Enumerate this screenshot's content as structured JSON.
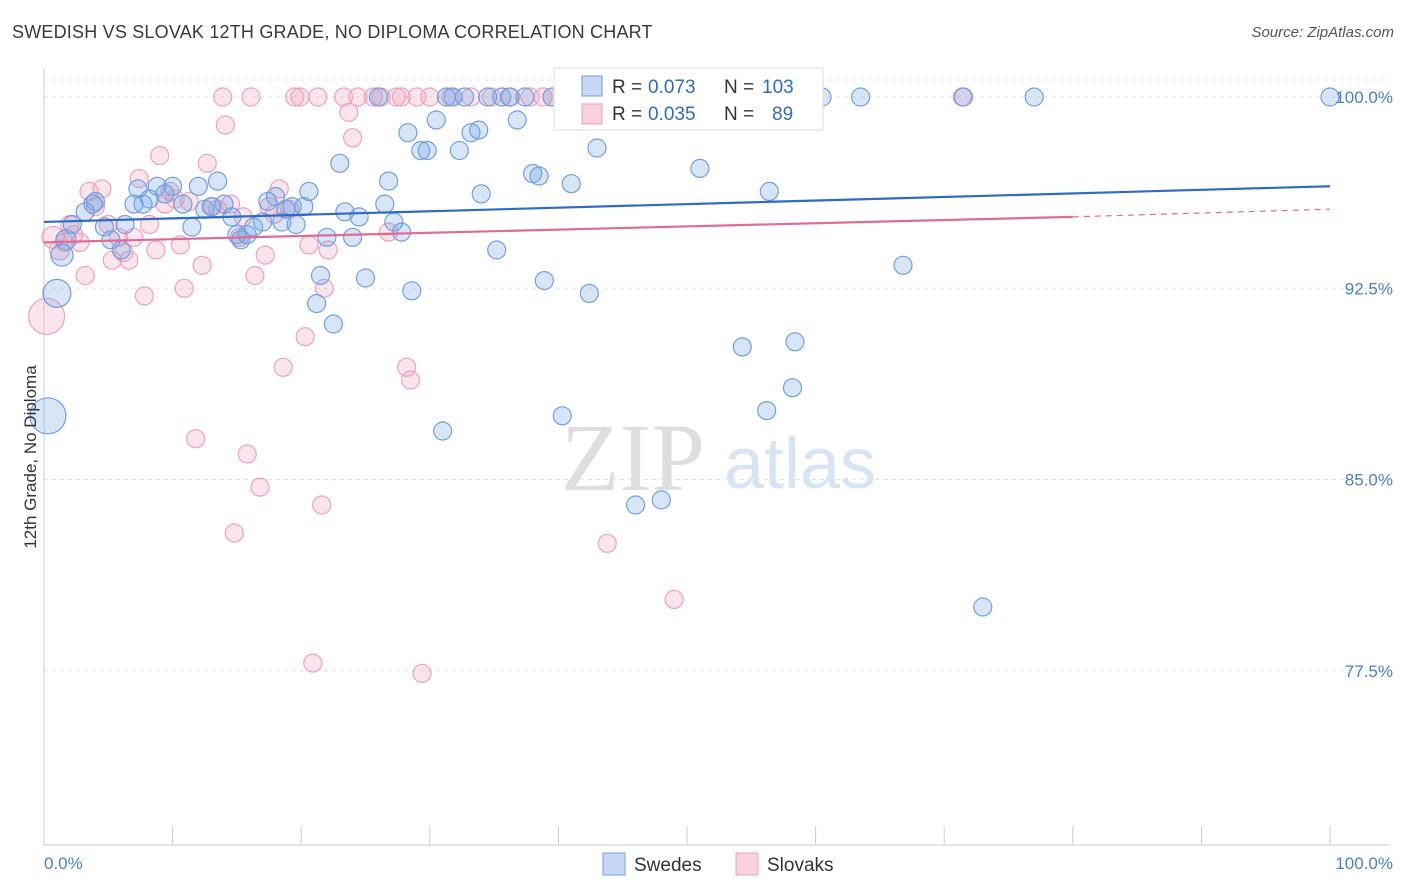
{
  "title": "SWEDISH VS SLOVAK 12TH GRADE, NO DIPLOMA CORRELATION CHART",
  "source": "Source: ZipAtlas.com",
  "watermark": {
    "zip": "ZIP",
    "atlas": "atlas"
  },
  "colors": {
    "swedes": "#6fa0e4",
    "slovaks": "#f0a0bc",
    "swedes_line": "#2f6bc4",
    "slovaks_line": "#e06b95"
  },
  "legend": {
    "swedes": {
      "r_label": "R =",
      "r_value": "0.073",
      "n_label": "N =",
      "n_value": "103"
    },
    "slovaks": {
      "r_label": "R =",
      "r_value": "0.035",
      "n_label": "N =",
      "n_value": "89"
    }
  },
  "bottom_legend": {
    "swedes": "Swedes",
    "slovaks": "Slovaks"
  },
  "chart_data": {
    "type": "scatter",
    "title": "SWEDISH VS SLOVAK 12TH GRADE, NO DIPLOMA CORRELATION CHART",
    "xlabel": "",
    "ylabel": "12th Grade, No Diploma",
    "xlim": [
      0,
      100
    ],
    "ylim": [
      70,
      101.4
    ],
    "x_ticks": [
      "0.0%",
      "100.0%"
    ],
    "y_ticks": [
      {
        "value": 100.0,
        "label": "100.0%"
      },
      {
        "value": 92.5,
        "label": "92.5%"
      },
      {
        "value": 85.0,
        "label": "85.0%"
      },
      {
        "value": 77.5,
        "label": "77.5%"
      }
    ],
    "grid": true,
    "series": [
      {
        "name": "Swedes",
        "color": "#6fa0e4",
        "trend": {
          "x": [
            0,
            100
          ],
          "y": [
            95.1,
            96.5
          ]
        },
        "points": [
          {
            "x": 0.3,
            "y": 87.5,
            "s": 18
          },
          {
            "x": 1.0,
            "y": 92.3,
            "s": 14
          },
          {
            "x": 1.4,
            "y": 93.8,
            "s": 11
          },
          {
            "x": 1.7,
            "y": 94.4,
            "s": 10
          },
          {
            "x": 2.2,
            "y": 95.0,
            "s": 9
          },
          {
            "x": 3.2,
            "y": 95.5,
            "s": 9
          },
          {
            "x": 3.8,
            "y": 95.8,
            "s": 9
          },
          {
            "x": 4.0,
            "y": 95.9,
            "s": 9
          },
          {
            "x": 4.7,
            "y": 94.9,
            "s": 9
          },
          {
            "x": 5.2,
            "y": 94.4,
            "s": 9
          },
          {
            "x": 6.0,
            "y": 94.0,
            "s": 9
          },
          {
            "x": 6.3,
            "y": 95.0,
            "s": 9
          },
          {
            "x": 7.0,
            "y": 95.8,
            "s": 9
          },
          {
            "x": 7.3,
            "y": 96.4,
            "s": 9
          },
          {
            "x": 7.7,
            "y": 95.8,
            "s": 9
          },
          {
            "x": 8.2,
            "y": 96.0,
            "s": 9
          },
          {
            "x": 8.8,
            "y": 96.5,
            "s": 9
          },
          {
            "x": 9.4,
            "y": 96.2,
            "s": 9
          },
          {
            "x": 10.0,
            "y": 96.5,
            "s": 9
          },
          {
            "x": 10.8,
            "y": 95.8,
            "s": 9
          },
          {
            "x": 11.5,
            "y": 94.9,
            "s": 9
          },
          {
            "x": 12.0,
            "y": 96.5,
            "s": 9
          },
          {
            "x": 12.5,
            "y": 95.6,
            "s": 9
          },
          {
            "x": 13.0,
            "y": 95.7,
            "s": 9
          },
          {
            "x": 13.5,
            "y": 96.7,
            "s": 9
          },
          {
            "x": 14.0,
            "y": 95.8,
            "s": 9
          },
          {
            "x": 14.6,
            "y": 95.3,
            "s": 9
          },
          {
            "x": 15.0,
            "y": 94.6,
            "s": 9
          },
          {
            "x": 15.3,
            "y": 94.4,
            "s": 9
          },
          {
            "x": 15.8,
            "y": 94.6,
            "s": 9
          },
          {
            "x": 16.3,
            "y": 94.9,
            "s": 9
          },
          {
            "x": 17.0,
            "y": 95.1,
            "s": 9
          },
          {
            "x": 17.4,
            "y": 95.9,
            "s": 9
          },
          {
            "x": 18.0,
            "y": 96.1,
            "s": 9
          },
          {
            "x": 18.5,
            "y": 95.1,
            "s": 9
          },
          {
            "x": 18.8,
            "y": 95.6,
            "s": 9
          },
          {
            "x": 19.3,
            "y": 95.7,
            "s": 9
          },
          {
            "x": 19.6,
            "y": 95.0,
            "s": 9
          },
          {
            "x": 20.2,
            "y": 95.7,
            "s": 9
          },
          {
            "x": 20.6,
            "y": 96.3,
            "s": 9
          },
          {
            "x": 21.2,
            "y": 91.9,
            "s": 9
          },
          {
            "x": 21.5,
            "y": 93.0,
            "s": 9
          },
          {
            "x": 22.0,
            "y": 94.5,
            "s": 9
          },
          {
            "x": 22.5,
            "y": 91.1,
            "s": 9
          },
          {
            "x": 23.0,
            "y": 97.4,
            "s": 9
          },
          {
            "x": 23.4,
            "y": 95.5,
            "s": 9
          },
          {
            "x": 24.0,
            "y": 94.5,
            "s": 9
          },
          {
            "x": 24.5,
            "y": 95.3,
            "s": 9
          },
          {
            "x": 25.0,
            "y": 92.9,
            "s": 9
          },
          {
            "x": 26.0,
            "y": 100.0,
            "s": 9
          },
          {
            "x": 26.5,
            "y": 95.8,
            "s": 9
          },
          {
            "x": 26.8,
            "y": 96.7,
            "s": 9
          },
          {
            "x": 27.2,
            "y": 95.1,
            "s": 9
          },
          {
            "x": 27.8,
            "y": 94.7,
            "s": 9
          },
          {
            "x": 28.3,
            "y": 98.6,
            "s": 9
          },
          {
            "x": 28.6,
            "y": 92.4,
            "s": 9
          },
          {
            "x": 29.3,
            "y": 97.9,
            "s": 9
          },
          {
            "x": 29.8,
            "y": 97.9,
            "s": 9
          },
          {
            "x": 30.5,
            "y": 99.1,
            "s": 9
          },
          {
            "x": 31.0,
            "y": 86.9,
            "s": 9
          },
          {
            "x": 31.3,
            "y": 100.0,
            "s": 9
          },
          {
            "x": 31.8,
            "y": 100.0,
            "s": 9
          },
          {
            "x": 32.3,
            "y": 97.9,
            "s": 9
          },
          {
            "x": 32.7,
            "y": 100.0,
            "s": 9
          },
          {
            "x": 33.2,
            "y": 98.6,
            "s": 9
          },
          {
            "x": 33.8,
            "y": 98.7,
            "s": 9
          },
          {
            "x": 34.0,
            "y": 96.2,
            "s": 9
          },
          {
            "x": 34.5,
            "y": 100.0,
            "s": 9
          },
          {
            "x": 35.2,
            "y": 94.0,
            "s": 9
          },
          {
            "x": 35.6,
            "y": 100.0,
            "s": 9
          },
          {
            "x": 36.2,
            "y": 100.0,
            "s": 9
          },
          {
            "x": 36.8,
            "y": 99.1,
            "s": 9
          },
          {
            "x": 37.4,
            "y": 100.0,
            "s": 9
          },
          {
            "x": 38.0,
            "y": 97.0,
            "s": 9
          },
          {
            "x": 38.5,
            "y": 96.9,
            "s": 9
          },
          {
            "x": 38.9,
            "y": 92.8,
            "s": 9
          },
          {
            "x": 39.5,
            "y": 100.0,
            "s": 9
          },
          {
            "x": 40.3,
            "y": 87.5,
            "s": 9
          },
          {
            "x": 41.0,
            "y": 96.6,
            "s": 9
          },
          {
            "x": 41.5,
            "y": 100.0,
            "s": 9
          },
          {
            "x": 42.0,
            "y": 100.0,
            "s": 9
          },
          {
            "x": 42.4,
            "y": 92.3,
            "s": 9
          },
          {
            "x": 43.0,
            "y": 98.0,
            "s": 9
          },
          {
            "x": 45.0,
            "y": 100.0,
            "s": 9
          },
          {
            "x": 46.0,
            "y": 84.0,
            "s": 9
          },
          {
            "x": 47.0,
            "y": 100.0,
            "s": 9
          },
          {
            "x": 48.0,
            "y": 84.2,
            "s": 9
          },
          {
            "x": 50.0,
            "y": 100.0,
            "s": 9
          },
          {
            "x": 51.0,
            "y": 97.2,
            "s": 9
          },
          {
            "x": 53.0,
            "y": 100.0,
            "s": 9
          },
          {
            "x": 54.3,
            "y": 90.2,
            "s": 9
          },
          {
            "x": 56.2,
            "y": 87.7,
            "s": 9
          },
          {
            "x": 56.4,
            "y": 96.3,
            "s": 9
          },
          {
            "x": 58.2,
            "y": 88.6,
            "s": 9
          },
          {
            "x": 58.4,
            "y": 90.4,
            "s": 9
          },
          {
            "x": 60.5,
            "y": 100.0,
            "s": 9
          },
          {
            "x": 63.5,
            "y": 100.0,
            "s": 9
          },
          {
            "x": 66.8,
            "y": 93.4,
            "s": 9
          },
          {
            "x": 71.5,
            "y": 100.0,
            "s": 9
          },
          {
            "x": 73.0,
            "y": 80.0,
            "s": 9
          },
          {
            "x": 77.0,
            "y": 100.0,
            "s": 9
          },
          {
            "x": 100.0,
            "y": 100.0,
            "s": 9
          }
        ]
      },
      {
        "name": "Slovaks",
        "color": "#f0a0bc",
        "trend": {
          "x": [
            0,
            80,
            100
          ],
          "y": [
            94.3,
            95.3,
            95.6
          ]
        },
        "points": [
          {
            "x": 0.2,
            "y": 91.4,
            "s": 18
          },
          {
            "x": 0.7,
            "y": 94.5,
            "s": 11
          },
          {
            "x": 1.2,
            "y": 94.0,
            "s": 10
          },
          {
            "x": 1.6,
            "y": 94.3,
            "s": 9
          },
          {
            "x": 2.0,
            "y": 95.0,
            "s": 9
          },
          {
            "x": 2.3,
            "y": 94.6,
            "s": 9
          },
          {
            "x": 2.8,
            "y": 94.3,
            "s": 9
          },
          {
            "x": 3.2,
            "y": 93.0,
            "s": 9
          },
          {
            "x": 3.5,
            "y": 96.3,
            "s": 9
          },
          {
            "x": 4.0,
            "y": 95.7,
            "s": 9
          },
          {
            "x": 4.5,
            "y": 96.4,
            "s": 9
          },
          {
            "x": 5.0,
            "y": 95.0,
            "s": 9
          },
          {
            "x": 5.3,
            "y": 93.6,
            "s": 9
          },
          {
            "x": 5.8,
            "y": 94.5,
            "s": 9
          },
          {
            "x": 6.2,
            "y": 93.9,
            "s": 9
          },
          {
            "x": 6.6,
            "y": 93.6,
            "s": 9
          },
          {
            "x": 7.0,
            "y": 94.5,
            "s": 9
          },
          {
            "x": 7.4,
            "y": 96.8,
            "s": 9
          },
          {
            "x": 7.8,
            "y": 92.2,
            "s": 9
          },
          {
            "x": 8.2,
            "y": 95.0,
            "s": 9
          },
          {
            "x": 8.7,
            "y": 94.0,
            "s": 9
          },
          {
            "x": 9.0,
            "y": 97.7,
            "s": 9
          },
          {
            "x": 9.4,
            "y": 95.8,
            "s": 9
          },
          {
            "x": 9.8,
            "y": 96.3,
            "s": 9
          },
          {
            "x": 10.2,
            "y": 96.0,
            "s": 9
          },
          {
            "x": 10.6,
            "y": 94.2,
            "s": 9
          },
          {
            "x": 10.9,
            "y": 92.5,
            "s": 9
          },
          {
            "x": 11.3,
            "y": 95.9,
            "s": 9
          },
          {
            "x": 11.8,
            "y": 86.6,
            "s": 9
          },
          {
            "x": 12.3,
            "y": 93.4,
            "s": 9
          },
          {
            "x": 12.7,
            "y": 97.4,
            "s": 9
          },
          {
            "x": 13.1,
            "y": 95.7,
            "s": 9
          },
          {
            "x": 13.5,
            "y": 95.6,
            "s": 9
          },
          {
            "x": 13.9,
            "y": 100.0,
            "s": 9
          },
          {
            "x": 14.1,
            "y": 98.9,
            "s": 9
          },
          {
            "x": 14.5,
            "y": 95.8,
            "s": 9
          },
          {
            "x": 14.8,
            "y": 82.9,
            "s": 9
          },
          {
            "x": 15.2,
            "y": 94.5,
            "s": 9
          },
          {
            "x": 15.5,
            "y": 95.3,
            "s": 9
          },
          {
            "x": 15.8,
            "y": 86.0,
            "s": 9
          },
          {
            "x": 16.1,
            "y": 100.0,
            "s": 9
          },
          {
            "x": 16.4,
            "y": 93.0,
            "s": 9
          },
          {
            "x": 16.8,
            "y": 84.7,
            "s": 9
          },
          {
            "x": 17.2,
            "y": 93.8,
            "s": 9
          },
          {
            "x": 17.5,
            "y": 95.7,
            "s": 9
          },
          {
            "x": 17.9,
            "y": 95.4,
            "s": 9
          },
          {
            "x": 18.3,
            "y": 96.4,
            "s": 9
          },
          {
            "x": 18.6,
            "y": 89.4,
            "s": 9
          },
          {
            "x": 19.1,
            "y": 95.6,
            "s": 9
          },
          {
            "x": 19.5,
            "y": 100.0,
            "s": 9
          },
          {
            "x": 19.9,
            "y": 100.0,
            "s": 9
          },
          {
            "x": 20.3,
            "y": 90.6,
            "s": 9
          },
          {
            "x": 20.6,
            "y": 94.2,
            "s": 9
          },
          {
            "x": 20.9,
            "y": 77.8,
            "s": 9
          },
          {
            "x": 21.3,
            "y": 100.0,
            "s": 9
          },
          {
            "x": 21.6,
            "y": 84.0,
            "s": 9
          },
          {
            "x": 21.8,
            "y": 92.5,
            "s": 9
          },
          {
            "x": 22.1,
            "y": 94.0,
            "s": 9
          },
          {
            "x": 23.3,
            "y": 100.0,
            "s": 9
          },
          {
            "x": 23.7,
            "y": 99.4,
            "s": 9
          },
          {
            "x": 24.0,
            "y": 98.4,
            "s": 9
          },
          {
            "x": 24.4,
            "y": 100.0,
            "s": 9
          },
          {
            "x": 25.6,
            "y": 100.0,
            "s": 9
          },
          {
            "x": 26.2,
            "y": 100.0,
            "s": 9
          },
          {
            "x": 26.8,
            "y": 94.7,
            "s": 9
          },
          {
            "x": 27.4,
            "y": 100.0,
            "s": 9
          },
          {
            "x": 27.8,
            "y": 100.0,
            "s": 9
          },
          {
            "x": 28.2,
            "y": 89.4,
            "s": 9
          },
          {
            "x": 28.5,
            "y": 88.9,
            "s": 9
          },
          {
            "x": 29.0,
            "y": 100.0,
            "s": 9
          },
          {
            "x": 29.4,
            "y": 77.4,
            "s": 9
          },
          {
            "x": 30.0,
            "y": 100.0,
            "s": 9
          },
          {
            "x": 31.6,
            "y": 100.0,
            "s": 9
          },
          {
            "x": 33.2,
            "y": 100.0,
            "s": 9
          },
          {
            "x": 34.8,
            "y": 100.0,
            "s": 9
          },
          {
            "x": 36.3,
            "y": 100.0,
            "s": 9
          },
          {
            "x": 37.8,
            "y": 100.0,
            "s": 9
          },
          {
            "x": 38.8,
            "y": 100.0,
            "s": 9
          },
          {
            "x": 39.5,
            "y": 100.0,
            "s": 9
          },
          {
            "x": 43.8,
            "y": 82.5,
            "s": 9
          },
          {
            "x": 49.0,
            "y": 80.3,
            "s": 9
          },
          {
            "x": 71.4,
            "y": 100.0,
            "s": 9
          }
        ]
      }
    ]
  }
}
